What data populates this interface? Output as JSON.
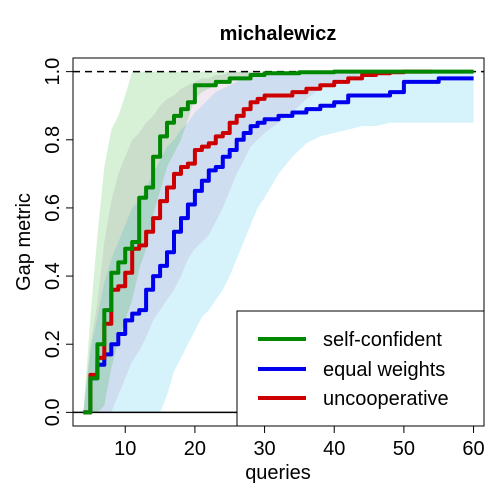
{
  "chart_data": {
    "type": "line",
    "title": "michalewicz",
    "xlabel": "queries",
    "ylabel": "Gap metric",
    "xlim": [
      2.5,
      61.5
    ],
    "ylim": [
      -0.04,
      1.04
    ],
    "x_ticks": [
      10,
      20,
      30,
      40,
      50,
      60
    ],
    "x_tick_labels": [
      "10",
      "20",
      "30",
      "40",
      "50",
      "60"
    ],
    "y_ticks": [
      0.0,
      0.2,
      0.4,
      0.6,
      0.8,
      1.0
    ],
    "y_tick_labels": [
      "0.0",
      "0.2",
      "0.4",
      "0.6",
      "0.8",
      "1.0"
    ],
    "reference_lines": [
      {
        "y": 1.0,
        "style": "dashed",
        "color": "#000000"
      },
      {
        "y": 0.0,
        "style": "solid",
        "color": "#000000"
      }
    ],
    "legend_position": "bottom-right",
    "series": [
      {
        "name": "self-confident",
        "color": "#008800",
        "band_color": "rgba(0,170,0,0.16)",
        "x": [
          4,
          5,
          6,
          7,
          8,
          9,
          10,
          11,
          12,
          13,
          14,
          15,
          16,
          17,
          18,
          19,
          20,
          21,
          22,
          23,
          24,
          25,
          26,
          28,
          30,
          35,
          40,
          45,
          50,
          55,
          60
        ],
        "y": [
          0.0,
          0.1,
          0.2,
          0.3,
          0.41,
          0.44,
          0.48,
          0.5,
          0.63,
          0.66,
          0.75,
          0.81,
          0.85,
          0.87,
          0.89,
          0.91,
          0.96,
          0.96,
          0.96,
          0.97,
          0.97,
          0.98,
          0.98,
          0.99,
          0.995,
          0.998,
          1.0,
          1.0,
          1.0,
          1.0,
          1.0
        ],
        "lower": [
          0.0,
          0.0,
          0.0,
          0.02,
          0.13,
          0.21,
          0.27,
          0.33,
          0.42,
          0.48,
          0.58,
          0.65,
          0.72,
          0.76,
          0.8,
          0.86,
          0.92,
          0.94,
          0.95,
          0.96,
          0.97,
          0.97,
          0.98,
          0.985,
          0.99,
          0.995,
          1.0,
          1.0,
          1.0,
          1.0,
          1.0
        ],
        "upper": [
          0.0,
          0.28,
          0.52,
          0.72,
          0.83,
          0.87,
          0.93,
          1.0,
          1.0,
          1.0,
          1.0,
          1.0,
          1.0,
          1.0,
          1.0,
          1.0,
          1.0,
          1.0,
          1.0,
          1.0,
          1.0,
          1.0,
          1.0,
          1.0,
          1.0,
          1.0,
          1.0,
          1.0,
          1.0,
          1.0,
          1.0
        ]
      },
      {
        "name": "equal weights",
        "color": "#0000ee",
        "band_color": "rgba(0,178,238,0.16)",
        "x": [
          4,
          5,
          6,
          7,
          8,
          9,
          10,
          11,
          12,
          13,
          14,
          15,
          16,
          17,
          18,
          19,
          20,
          21,
          22,
          23,
          24,
          25,
          26,
          27,
          28,
          29,
          30,
          32,
          34,
          36,
          38,
          40,
          42,
          44,
          46,
          48,
          50,
          55,
          60
        ],
        "y": [
          0.0,
          0.1,
          0.14,
          0.17,
          0.2,
          0.23,
          0.27,
          0.29,
          0.3,
          0.36,
          0.4,
          0.43,
          0.47,
          0.53,
          0.57,
          0.61,
          0.65,
          0.68,
          0.71,
          0.72,
          0.75,
          0.77,
          0.8,
          0.82,
          0.84,
          0.85,
          0.86,
          0.87,
          0.88,
          0.89,
          0.9,
          0.91,
          0.93,
          0.93,
          0.93,
          0.94,
          0.97,
          0.98,
          0.98
        ],
        "lower": [
          0.0,
          0.0,
          0.0,
          0.0,
          0.0,
          0.0,
          0.0,
          0.0,
          0.0,
          0.0,
          0.0,
          0.0,
          0.05,
          0.12,
          0.16,
          0.2,
          0.24,
          0.28,
          0.3,
          0.33,
          0.36,
          0.4,
          0.45,
          0.5,
          0.55,
          0.6,
          0.63,
          0.7,
          0.75,
          0.79,
          0.81,
          0.82,
          0.83,
          0.84,
          0.84,
          0.85,
          0.85,
          0.85,
          0.85
        ],
        "upper": [
          0.0,
          0.18,
          0.28,
          0.38,
          0.45,
          0.5,
          0.55,
          0.6,
          0.62,
          0.66,
          0.7,
          0.74,
          0.78,
          0.8,
          0.83,
          0.85,
          0.88,
          0.9,
          0.92,
          0.94,
          0.95,
          0.96,
          0.97,
          0.98,
          0.98,
          0.99,
          0.99,
          1.0,
          1.0,
          1.0,
          1.0,
          1.0,
          1.0,
          1.0,
          1.0,
          1.0,
          1.0,
          1.0,
          1.0
        ]
      },
      {
        "name": "uncooperative",
        "color": "#cc0000",
        "band_color": "rgba(160,90,160,0.14)",
        "x": [
          4,
          5,
          6,
          7,
          8,
          9,
          10,
          11,
          12,
          13,
          14,
          15,
          16,
          17,
          18,
          19,
          20,
          21,
          22,
          23,
          24,
          25,
          26,
          27,
          28,
          29,
          30,
          32,
          34,
          36,
          38,
          40,
          42,
          44,
          46,
          48,
          50,
          52,
          54
        ],
        "y": [
          0.0,
          0.11,
          0.16,
          0.26,
          0.36,
          0.37,
          0.41,
          0.48,
          0.49,
          0.53,
          0.57,
          0.62,
          0.66,
          0.7,
          0.72,
          0.73,
          0.77,
          0.78,
          0.79,
          0.81,
          0.82,
          0.85,
          0.87,
          0.89,
          0.91,
          0.92,
          0.93,
          0.93,
          0.94,
          0.95,
          0.96,
          0.97,
          0.98,
          0.99,
          0.995,
          0.998,
          1.0,
          1.0,
          1.0
        ],
        "lower": [
          0.0,
          0.0,
          0.0,
          0.0,
          0.0,
          0.05,
          0.1,
          0.15,
          0.18,
          0.22,
          0.27,
          0.3,
          0.33,
          0.36,
          0.4,
          0.45,
          0.48,
          0.5,
          0.52,
          0.56,
          0.6,
          0.65,
          0.7,
          0.74,
          0.78,
          0.8,
          0.82,
          0.85,
          0.88,
          0.92,
          0.95,
          0.97,
          0.98,
          0.99,
          1.0,
          1.0,
          1.0,
          1.0,
          1.0
        ],
        "upper": [
          0.0,
          0.2,
          0.32,
          0.5,
          0.62,
          0.7,
          0.75,
          0.8,
          0.82,
          0.85,
          0.87,
          0.9,
          0.92,
          0.93,
          0.95,
          0.96,
          0.97,
          0.98,
          0.98,
          0.99,
          0.99,
          1.0,
          1.0,
          1.0,
          1.0,
          1.0,
          1.0,
          1.0,
          1.0,
          1.0,
          1.0,
          1.0,
          1.0,
          1.0,
          1.0,
          1.0,
          1.0,
          1.0,
          1.0
        ]
      }
    ]
  }
}
